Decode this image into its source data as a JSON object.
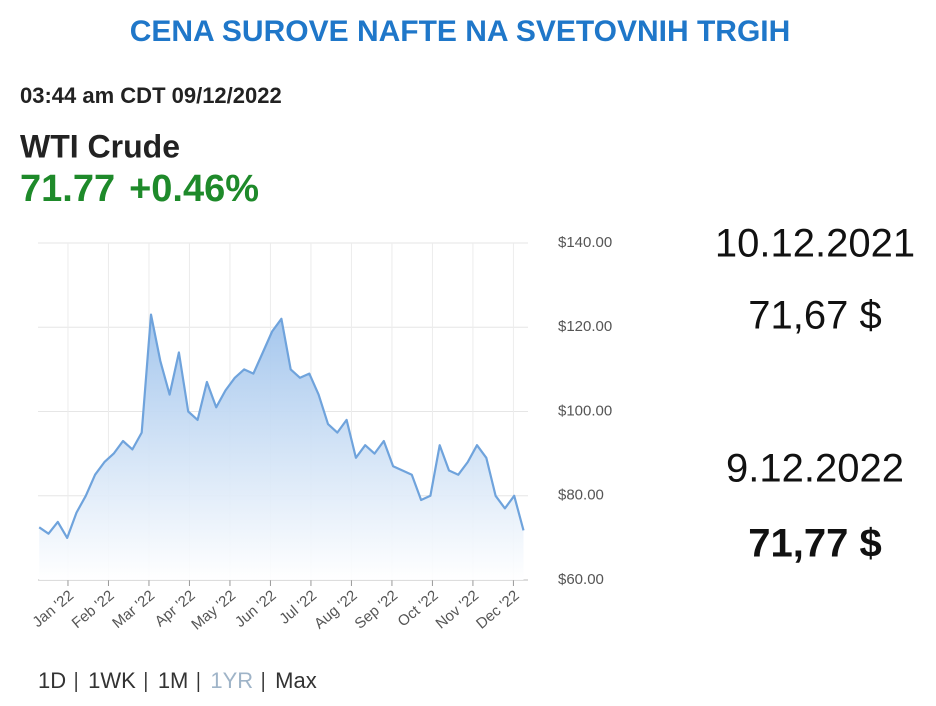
{
  "title": "CENA SUROVE NAFTE NA SVETOVNIH TRGIH",
  "quote": {
    "timestamp": "03:44 am CDT 09/12/2022",
    "name": "WTI Crude",
    "price": "71.77",
    "change": "+0.46%"
  },
  "comparison": [
    {
      "date": "10.12.2021",
      "price": "71,67 $"
    },
    {
      "date": "9.12.2022",
      "price": "71,77 $"
    }
  ],
  "ranges": [
    "1D",
    "1WK",
    "1M",
    "1YR",
    "Max"
  ],
  "chart_data": {
    "type": "area",
    "color": "#6fa3dc",
    "grid": true,
    "x": [
      -0.71,
      -0.48,
      -0.25,
      -0.02,
      0.21,
      0.44,
      0.67,
      0.9,
      1.13,
      1.36,
      1.59,
      1.82,
      2.05,
      2.28,
      2.51,
      2.74,
      2.97,
      3.2,
      3.43,
      3.66,
      3.89,
      4.12,
      4.35,
      4.58,
      4.81,
      5.04,
      5.27,
      5.5,
      5.73,
      5.96,
      6.19,
      6.42,
      6.65,
      6.88,
      7.11,
      7.34,
      7.57,
      7.8,
      8.03,
      8.26,
      8.49,
      8.72,
      8.95,
      9.18,
      9.41,
      9.64,
      9.87,
      10.1,
      10.33,
      10.56,
      10.79,
      11.02,
      11.25
    ],
    "values": [
      72.5,
      71,
      73.8,
      70,
      76,
      80,
      85,
      88,
      90,
      93,
      91,
      95,
      123,
      112,
      104,
      114,
      100,
      98,
      107,
      101,
      105,
      108,
      110,
      109,
      114,
      119,
      122,
      110,
      108,
      109,
      104,
      97,
      95,
      98,
      89,
      92,
      90,
      93,
      87,
      86,
      85,
      79,
      80,
      92,
      86,
      85,
      88,
      92,
      89,
      80,
      77,
      80,
      71.77
    ],
    "xlim": [
      -0.74,
      11.36
    ],
    "xticks": [
      {
        "value": 0,
        "label": "Jan '22"
      },
      {
        "value": 1,
        "label": "Feb '22"
      },
      {
        "value": 2,
        "label": "Mar '22"
      },
      {
        "value": 3,
        "label": "Apr '22"
      },
      {
        "value": 4,
        "label": "May '22"
      },
      {
        "value": 5,
        "label": "Jun '22"
      },
      {
        "value": 6,
        "label": "Jul '22"
      },
      {
        "value": 7,
        "label": "Aug '22"
      },
      {
        "value": 8,
        "label": "Sep '22"
      },
      {
        "value": 9,
        "label": "Oct '22"
      },
      {
        "value": 10,
        "label": "Nov '22"
      },
      {
        "value": 11,
        "label": "Dec '22"
      }
    ],
    "ylim": [
      60,
      140
    ],
    "yticks": [
      {
        "value": 60,
        "label": "$60.00"
      },
      {
        "value": 80,
        "label": "$80.00"
      },
      {
        "value": 100,
        "label": "$100.00"
      },
      {
        "value": 120,
        "label": "$120.00"
      },
      {
        "value": 140,
        "label": "$140.00"
      }
    ]
  }
}
